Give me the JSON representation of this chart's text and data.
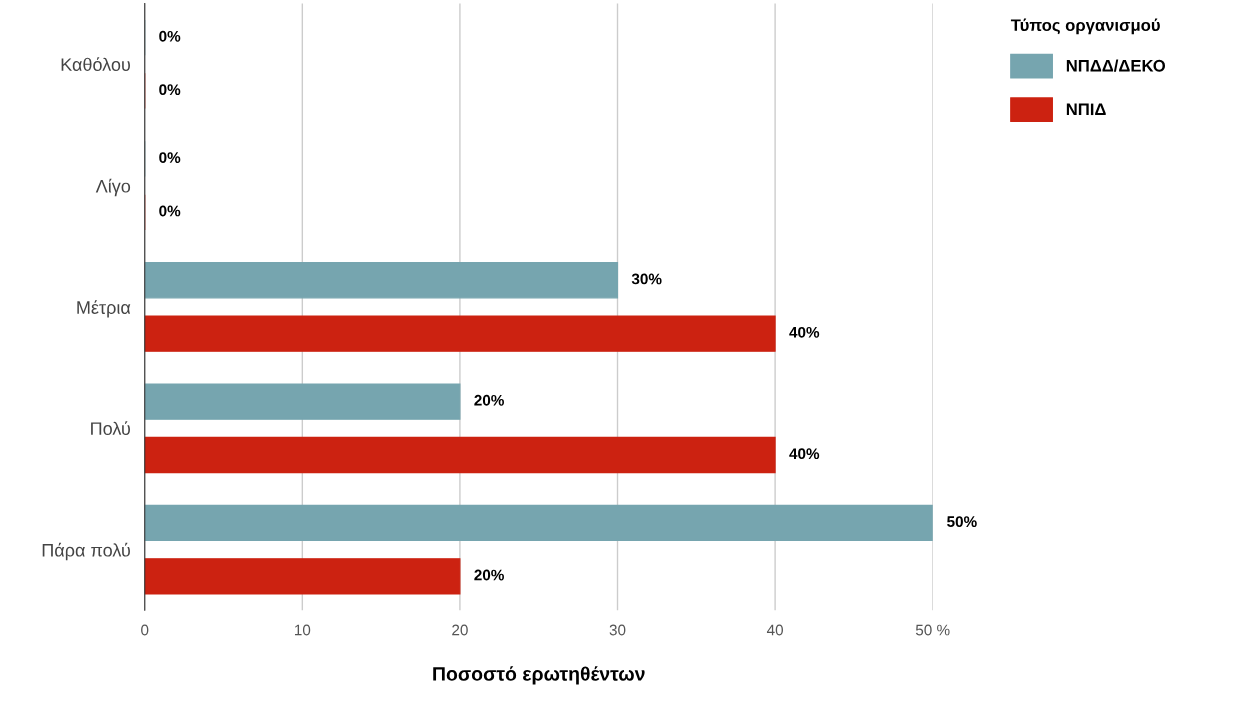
{
  "chart_data": {
    "type": "bar",
    "orientation": "horizontal",
    "xlabel": "Ποσοστό ερωτηθέντων",
    "legend_title": "Τύπος οργανισμού",
    "categories": [
      "Καθόλου",
      "Λίγο",
      "Μέτρια",
      "Πολύ",
      "Πάρα πολύ"
    ],
    "series": [
      {
        "name": "ΝΠΔΔ/ΔΕΚΟ",
        "color": "#76a5af",
        "values": [
          0,
          0,
          30,
          20,
          50
        ],
        "value_labels": [
          "0%",
          "0%",
          "30%",
          "20%",
          "50%"
        ]
      },
      {
        "name": "ΝΠΙΔ",
        "color": "#cc2211",
        "values": [
          0,
          0,
          40,
          40,
          20
        ],
        "value_labels": [
          "0%",
          "0%",
          "40%",
          "40%",
          "20%"
        ]
      }
    ],
    "xlim": [
      0,
      50
    ],
    "xticks": [
      0,
      10,
      20,
      30,
      40,
      {
        "value": 50,
        "label": "50 %"
      }
    ],
    "grid": "x",
    "legend": "top right"
  }
}
